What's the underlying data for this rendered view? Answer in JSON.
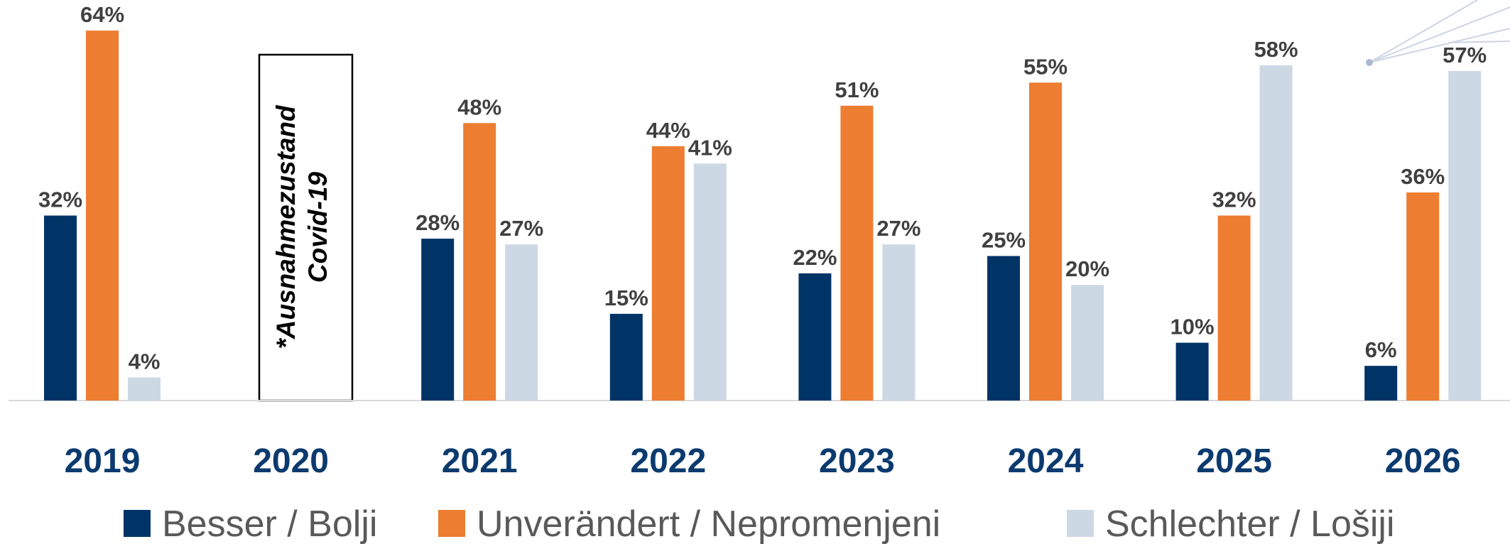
{
  "chart_data": {
    "type": "bar",
    "categories": [
      "2019",
      "2020",
      "2021",
      "2022",
      "2023",
      "2024",
      "2025",
      "2026"
    ],
    "series": [
      {
        "name": "Besser / Bolji",
        "color": "#003366",
        "values": [
          32,
          null,
          28,
          15,
          22,
          25,
          10,
          6
        ],
        "value_labels": [
          "32%",
          null,
          "28%",
          "15%",
          "22%",
          "25%",
          "10%",
          "6%"
        ]
      },
      {
        "name": "Unverändert / Nepromenjeni",
        "color": "#ed7d31",
        "values": [
          64,
          null,
          48,
          44,
          51,
          55,
          32,
          36
        ],
        "value_labels": [
          "64%",
          null,
          "48%",
          "44%",
          "51%",
          "55%",
          "32%",
          "36%"
        ]
      },
      {
        "name": "Schlechter / Lošiji",
        "color": "#cdd8e5",
        "values": [
          4,
          null,
          27,
          41,
          27,
          20,
          58,
          57
        ],
        "value_labels": [
          "4%",
          null,
          "27%",
          "41%",
          "27%",
          "20%",
          "58%",
          "57%"
        ]
      }
    ],
    "annotation": [
      "*Ausnahmezustand",
      "Covid-19"
    ]
  }
}
